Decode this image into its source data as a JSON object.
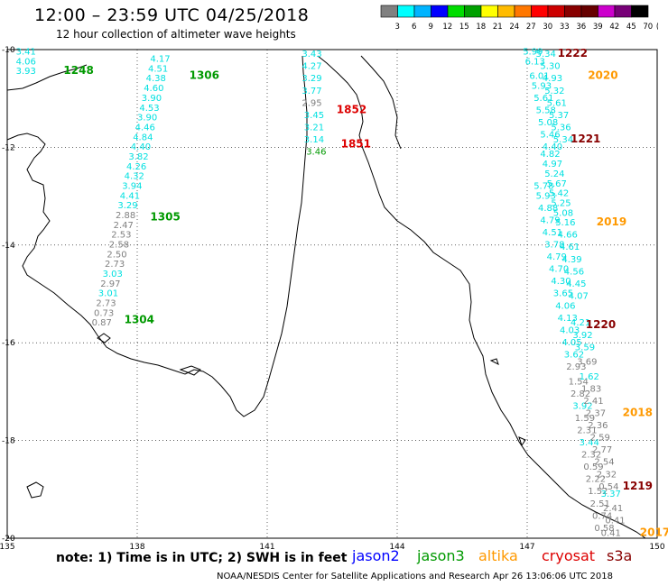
{
  "header": {
    "title": "12:00 – 23:59 UTC 04/25/2018",
    "subtitle": "12 hour collection of altimeter wave heights"
  },
  "colorbar": {
    "colors": [
      "#808080",
      "#00ffff",
      "#00b4ff",
      "#0000ff",
      "#00dd00",
      "#00a000",
      "#ffff00",
      "#ffbb00",
      "#ff7700",
      "#ff0000",
      "#cc0000",
      "#880000",
      "#660000",
      "#cc00cc",
      "#770077",
      "#000000"
    ],
    "labels": [
      "3",
      "6",
      "9",
      "12",
      "15",
      "18",
      "21",
      "24",
      "27",
      "30",
      "33",
      "36",
      "39",
      "42",
      "45",
      "70",
      "(ft)"
    ]
  },
  "axes": {
    "x_ticks": [
      "135",
      "138",
      "141",
      "144",
      "147",
      "150"
    ],
    "y_ticks": [
      "-10",
      "-12",
      "-14",
      "-16",
      "-18",
      "-20"
    ]
  },
  "tracks": [
    {
      "name": "1248",
      "color": "#009900",
      "lon": 136.3,
      "lat": -10.5,
      "values": [
        {
          "lat": -10.1,
          "lon": 135.2,
          "v": "3.41",
          "c": "#00e0e0"
        },
        {
          "lat": -10.3,
          "lon": 135.2,
          "v": "4.06",
          "c": "#00e0e0"
        },
        {
          "lat": -10.5,
          "lon": 135.2,
          "v": "3.93",
          "c": "#00e0e0"
        }
      ]
    },
    {
      "name": "1306",
      "color": "#009900",
      "lon": 139.2,
      "lat": -10.6,
      "values": [
        {
          "lat": -10.25,
          "lon": 138.3,
          "v": "4.17",
          "c": "#00e0e0"
        },
        {
          "lat": -10.45,
          "lon": 138.25,
          "v": "4.51",
          "c": "#00e0e0"
        },
        {
          "lat": -10.65,
          "lon": 138.2,
          "v": "4.38",
          "c": "#00e0e0"
        },
        {
          "lat": -10.85,
          "lon": 138.15,
          "v": "4.60",
          "c": "#00e0e0"
        },
        {
          "lat": -11.05,
          "lon": 138.1,
          "v": "3.90",
          "c": "#00e0e0"
        },
        {
          "lat": -11.25,
          "lon": 138.05,
          "v": "4.53",
          "c": "#00e0e0"
        },
        {
          "lat": -11.45,
          "lon": 138.0,
          "v": "3.90",
          "c": "#00e0e0"
        },
        {
          "lat": -11.65,
          "lon": 137.95,
          "v": "4.46",
          "c": "#00e0e0"
        },
        {
          "lat": -11.85,
          "lon": 137.9,
          "v": "4.84",
          "c": "#00e0e0"
        },
        {
          "lat": -12.05,
          "lon": 137.85,
          "v": "4.40",
          "c": "#00e0e0"
        },
        {
          "lat": -12.25,
          "lon": 137.8,
          "v": "3.82",
          "c": "#00e0e0"
        },
        {
          "lat": -12.45,
          "lon": 137.75,
          "v": "4.26",
          "c": "#00e0e0"
        },
        {
          "lat": -12.65,
          "lon": 137.7,
          "v": "4.32",
          "c": "#00e0e0"
        },
        {
          "lat": -12.85,
          "lon": 137.65,
          "v": "3.94",
          "c": "#00e0e0"
        },
        {
          "lat": -13.05,
          "lon": 137.6,
          "v": "4.41",
          "c": "#00e0e0"
        },
        {
          "lat": -13.25,
          "lon": 137.55,
          "v": "3.29",
          "c": "#00e0e0"
        }
      ]
    },
    {
      "name": "1305",
      "color": "#009900",
      "lon": 138.3,
      "lat": -13.5,
      "values": [
        {
          "lat": -13.45,
          "lon": 137.5,
          "v": "2.88",
          "c": "#808080"
        },
        {
          "lat": -13.65,
          "lon": 137.45,
          "v": "2.47",
          "c": "#808080"
        },
        {
          "lat": -13.85,
          "lon": 137.4,
          "v": "2.53",
          "c": "#808080"
        },
        {
          "lat": -14.05,
          "lon": 137.35,
          "v": "2.58",
          "c": "#808080"
        },
        {
          "lat": -14.25,
          "lon": 137.3,
          "v": "2.50",
          "c": "#808080"
        },
        {
          "lat": -14.45,
          "lon": 137.25,
          "v": "2.73",
          "c": "#808080"
        },
        {
          "lat": -14.65,
          "lon": 137.2,
          "v": "3.03",
          "c": "#00e0e0"
        },
        {
          "lat": -14.85,
          "lon": 137.15,
          "v": "2.97",
          "c": "#808080"
        },
        {
          "lat": -15.05,
          "lon": 137.1,
          "v": "3.01",
          "c": "#00e0e0"
        },
        {
          "lat": -15.25,
          "lon": 137.05,
          "v": "2.73",
          "c": "#808080"
        },
        {
          "lat": -15.45,
          "lon": 137.0,
          "v": "0.73",
          "c": "#808080"
        },
        {
          "lat": -15.65,
          "lon": 136.95,
          "v": "0.87",
          "c": "#808080"
        }
      ]
    },
    {
      "name": "1304",
      "color": "#009900",
      "lon": 137.7,
      "lat": -15.6,
      "values": []
    },
    {
      "name": "1852",
      "color": "#dd0000",
      "lon": 142.6,
      "lat": -11.3,
      "values": [
        {
          "lat": -10.15,
          "lon": 141.8,
          "v": "3.43",
          "c": "#00e0e0"
        },
        {
          "lat": -10.4,
          "lon": 141.8,
          "v": "4.27",
          "c": "#00e0e0"
        },
        {
          "lat": -10.65,
          "lon": 141.8,
          "v": "3.29",
          "c": "#00e0e0"
        },
        {
          "lat": -10.9,
          "lon": 141.8,
          "v": "3.77",
          "c": "#00e0e0"
        },
        {
          "lat": -11.15,
          "lon": 141.8,
          "v": "2.95",
          "c": "#808080"
        },
        {
          "lat": -11.4,
          "lon": 141.85,
          "v": "3.45",
          "c": "#00e0e0"
        },
        {
          "lat": -11.65,
          "lon": 141.85,
          "v": "3.21",
          "c": "#00e0e0"
        },
        {
          "lat": -11.9,
          "lon": 141.85,
          "v": "3.14",
          "c": "#00e0e0"
        },
        {
          "lat": -12.15,
          "lon": 141.9,
          "v": "3.46",
          "c": "#009900"
        }
      ]
    },
    {
      "name": "1851",
      "color": "#dd0000",
      "lon": 142.7,
      "lat": -12.0,
      "values": []
    },
    {
      "name": "2020",
      "color": "#ff9900",
      "lon": 148.4,
      "lat": -10.6,
      "values": [
        {
          "lat": -10.1,
          "lon": 146.9,
          "v": "5.99",
          "c": "#00e0e0"
        },
        {
          "lat": -10.3,
          "lon": 146.95,
          "v": "6.13",
          "c": "#00e0e0"
        },
        {
          "lat": -10.6,
          "lon": 147.05,
          "v": "6.01",
          "c": "#00e0e0"
        },
        {
          "lat": -10.8,
          "lon": 147.1,
          "v": "5.93",
          "c": "#00e0e0"
        },
        {
          "lat": -11.05,
          "lon": 147.15,
          "v": "5.61",
          "c": "#00e0e0"
        },
        {
          "lat": -11.3,
          "lon": 147.2,
          "v": "5.58",
          "c": "#00e0e0"
        },
        {
          "lat": -11.55,
          "lon": 147.25,
          "v": "5.08",
          "c": "#00e0e0"
        },
        {
          "lat": -11.8,
          "lon": 147.3,
          "v": "5.46",
          "c": "#00e0e0"
        },
        {
          "lat": -12.05,
          "lon": 147.35,
          "v": "4.40",
          "c": "#00e0e0"
        }
      ]
    },
    {
      "name": "1222",
      "color": "#880000",
      "lon": 147.7,
      "lat": -10.15,
      "values": [
        {
          "lat": -10.15,
          "lon": 147.2,
          "v": "5.34",
          "c": "#00e0e0"
        },
        {
          "lat": -10.4,
          "lon": 147.3,
          "v": "5.30",
          "c": "#00e0e0"
        },
        {
          "lat": -10.65,
          "lon": 147.35,
          "v": "4.93",
          "c": "#00e0e0"
        },
        {
          "lat": -10.9,
          "lon": 147.4,
          "v": "5.32",
          "c": "#00e0e0"
        },
        {
          "lat": -11.15,
          "lon": 147.45,
          "v": "5.61",
          "c": "#00e0e0"
        },
        {
          "lat": -11.4,
          "lon": 147.5,
          "v": "5.37",
          "c": "#00e0e0"
        },
        {
          "lat": -11.65,
          "lon": 147.55,
          "v": "5.36",
          "c": "#00e0e0"
        },
        {
          "lat": -11.9,
          "lon": 147.6,
          "v": "5.34",
          "c": "#00e0e0"
        }
      ]
    },
    {
      "name": "1221",
      "color": "#880000",
      "lon": 148.0,
      "lat": -11.9,
      "values": [
        {
          "lat": -12.2,
          "lon": 147.3,
          "v": "4.82",
          "c": "#00e0e0"
        },
        {
          "lat": -12.4,
          "lon": 147.35,
          "v": "4.97",
          "c": "#00e0e0"
        },
        {
          "lat": -12.6,
          "lon": 147.4,
          "v": "5.24",
          "c": "#00e0e0"
        },
        {
          "lat": -12.8,
          "lon": 147.45,
          "v": "5.67",
          "c": "#00e0e0"
        },
        {
          "lat": -13.0,
          "lon": 147.5,
          "v": "5.42",
          "c": "#00e0e0"
        },
        {
          "lat": -13.2,
          "lon": 147.55,
          "v": "5.25",
          "c": "#00e0e0"
        },
        {
          "lat": -13.4,
          "lon": 147.6,
          "v": "5.08",
          "c": "#00e0e0"
        },
        {
          "lat": -13.6,
          "lon": 147.65,
          "v": "5.16",
          "c": "#00e0e0"
        },
        {
          "lat": -13.85,
          "lon": 147.7,
          "v": "4.66",
          "c": "#00e0e0"
        },
        {
          "lat": -14.1,
          "lon": 147.75,
          "v": "4.61",
          "c": "#00e0e0"
        },
        {
          "lat": -14.35,
          "lon": 147.8,
          "v": "4.39",
          "c": "#00e0e0"
        },
        {
          "lat": -14.6,
          "lon": 147.85,
          "v": "4.56",
          "c": "#00e0e0"
        },
        {
          "lat": -14.85,
          "lon": 147.9,
          "v": "4.45",
          "c": "#00e0e0"
        },
        {
          "lat": -15.1,
          "lon": 147.95,
          "v": "4.07",
          "c": "#00e0e0"
        }
      ]
    },
    {
      "name": "2019",
      "color": "#ff9900",
      "lon": 148.6,
      "lat": -13.6,
      "values": [
        {
          "lat": -12.85,
          "lon": 147.15,
          "v": "5.78",
          "c": "#00e0e0"
        },
        {
          "lat": -13.05,
          "lon": 147.2,
          "v": "5.93",
          "c": "#00e0e0"
        },
        {
          "lat": -13.3,
          "lon": 147.25,
          "v": "4.88",
          "c": "#00e0e0"
        },
        {
          "lat": -13.55,
          "lon": 147.3,
          "v": "4.79",
          "c": "#00e0e0"
        },
        {
          "lat": -13.8,
          "lon": 147.35,
          "v": "4.51",
          "c": "#00e0e0"
        },
        {
          "lat": -14.05,
          "lon": 147.4,
          "v": "3.78",
          "c": "#00e0e0"
        },
        {
          "lat": -14.3,
          "lon": 147.45,
          "v": "4.79",
          "c": "#00e0e0"
        },
        {
          "lat": -14.55,
          "lon": 147.5,
          "v": "4.70",
          "c": "#00e0e0"
        },
        {
          "lat": -14.8,
          "lon": 147.55,
          "v": "4.30",
          "c": "#00e0e0"
        },
        {
          "lat": -15.05,
          "lon": 147.6,
          "v": "3.65",
          "c": "#00e0e0"
        },
        {
          "lat": -15.3,
          "lon": 147.65,
          "v": "4.06",
          "c": "#00e0e0"
        },
        {
          "lat": -15.55,
          "lon": 147.7,
          "v": "4.13",
          "c": "#00e0e0"
        },
        {
          "lat": -15.8,
          "lon": 147.75,
          "v": "4.03",
          "c": "#00e0e0"
        },
        {
          "lat": -16.05,
          "lon": 147.8,
          "v": "4.05",
          "c": "#00e0e0"
        },
        {
          "lat": -16.3,
          "lon": 147.85,
          "v": "3.62",
          "c": "#00e0e0"
        },
        {
          "lat": -16.55,
          "lon": 147.9,
          "v": "2.93",
          "c": "#808080"
        },
        {
          "lat": -16.85,
          "lon": 147.95,
          "v": "1.54",
          "c": "#808080"
        },
        {
          "lat": -17.1,
          "lon": 148.0,
          "v": "2.82",
          "c": "#808080"
        },
        {
          "lat": -17.35,
          "lon": 148.05,
          "v": "3.92",
          "c": "#00e0e0"
        },
        {
          "lat": -17.6,
          "lon": 148.1,
          "v": "1.59",
          "c": "#808080"
        },
        {
          "lat": -17.85,
          "lon": 148.15,
          "v": "2.31",
          "c": "#808080"
        },
        {
          "lat": -18.1,
          "lon": 148.2,
          "v": "3.44",
          "c": "#00e0e0"
        },
        {
          "lat": -18.35,
          "lon": 148.25,
          "v": "2.32",
          "c": "#808080"
        },
        {
          "lat": -18.6,
          "lon": 148.3,
          "v": "0.59",
          "c": "#808080"
        },
        {
          "lat": -18.85,
          "lon": 148.35,
          "v": "2.22",
          "c": "#808080"
        },
        {
          "lat": -19.1,
          "lon": 148.4,
          "v": "1.52",
          "c": "#808080"
        },
        {
          "lat": -19.35,
          "lon": 148.45,
          "v": "2.51",
          "c": "#808080"
        },
        {
          "lat": -19.6,
          "lon": 148.5,
          "v": "0.74",
          "c": "#808080"
        },
        {
          "lat": -19.85,
          "lon": 148.55,
          "v": "0.58",
          "c": "#808080"
        }
      ]
    },
    {
      "name": "1220",
      "color": "#880000",
      "lon": 148.35,
      "lat": -15.7,
      "values": [
        {
          "lat": -15.65,
          "lon": 148.0,
          "v": "4.21",
          "c": "#00e0e0"
        },
        {
          "lat": -15.9,
          "lon": 148.05,
          "v": "3.92",
          "c": "#00e0e0"
        },
        {
          "lat": -16.15,
          "lon": 148.1,
          "v": "3.59",
          "c": "#00e0e0"
        },
        {
          "lat": -16.45,
          "lon": 148.15,
          "v": "3.69",
          "c": "#808080"
        },
        {
          "lat": -16.75,
          "lon": 148.2,
          "v": "1.62",
          "c": "#00e0e0"
        },
        {
          "lat": -17.0,
          "lon": 148.25,
          "v": "1.83",
          "c": "#808080"
        },
        {
          "lat": -17.25,
          "lon": 148.3,
          "v": "2.41",
          "c": "#808080"
        },
        {
          "lat": -17.5,
          "lon": 148.35,
          "v": "2.37",
          "c": "#808080"
        },
        {
          "lat": -17.75,
          "lon": 148.4,
          "v": "2.36",
          "c": "#808080"
        },
        {
          "lat": -18.0,
          "lon": 148.45,
          "v": "2.59",
          "c": "#808080"
        },
        {
          "lat": -18.25,
          "lon": 148.5,
          "v": "2.77",
          "c": "#808080"
        },
        {
          "lat": -18.5,
          "lon": 148.55,
          "v": "2.54",
          "c": "#808080"
        },
        {
          "lat": -18.75,
          "lon": 148.6,
          "v": "2.32",
          "c": "#808080"
        },
        {
          "lat": -19.0,
          "lon": 148.65,
          "v": "0.54",
          "c": "#808080"
        }
      ]
    },
    {
      "name": "2018",
      "color": "#ff9900",
      "lon": 149.2,
      "lat": -17.5,
      "values": []
    },
    {
      "name": "1219",
      "color": "#880000",
      "lon": 149.2,
      "lat": -19.0,
      "values": [
        {
          "lat": -19.15,
          "lon": 148.7,
          "v": "3.37",
          "c": "#00e0e0"
        },
        {
          "lat": -19.45,
          "lon": 148.75,
          "v": "2.41",
          "c": "#808080"
        },
        {
          "lat": -19.7,
          "lon": 148.8,
          "v": "0.41",
          "c": "#808080"
        },
        {
          "lat": -19.95,
          "lon": 148.7,
          "v": "0.41",
          "c": "#808080"
        }
      ]
    },
    {
      "name": "2017",
      "color": "#ff9900",
      "lon": 149.6,
      "lat": -19.95,
      "values": []
    }
  ],
  "footer": {
    "note": "note: 1) Time is in UTC; 2) SWH is in feet",
    "satellites": {
      "jason2": "jason2",
      "jason3": "jason3",
      "altika": "altika",
      "cryosat": "cryosat",
      "s3a": "s3a"
    },
    "credit": "NOAA/NESDIS Center for Satellite Applications and Research   Apr 26 13:06:06 UTC 2018"
  }
}
